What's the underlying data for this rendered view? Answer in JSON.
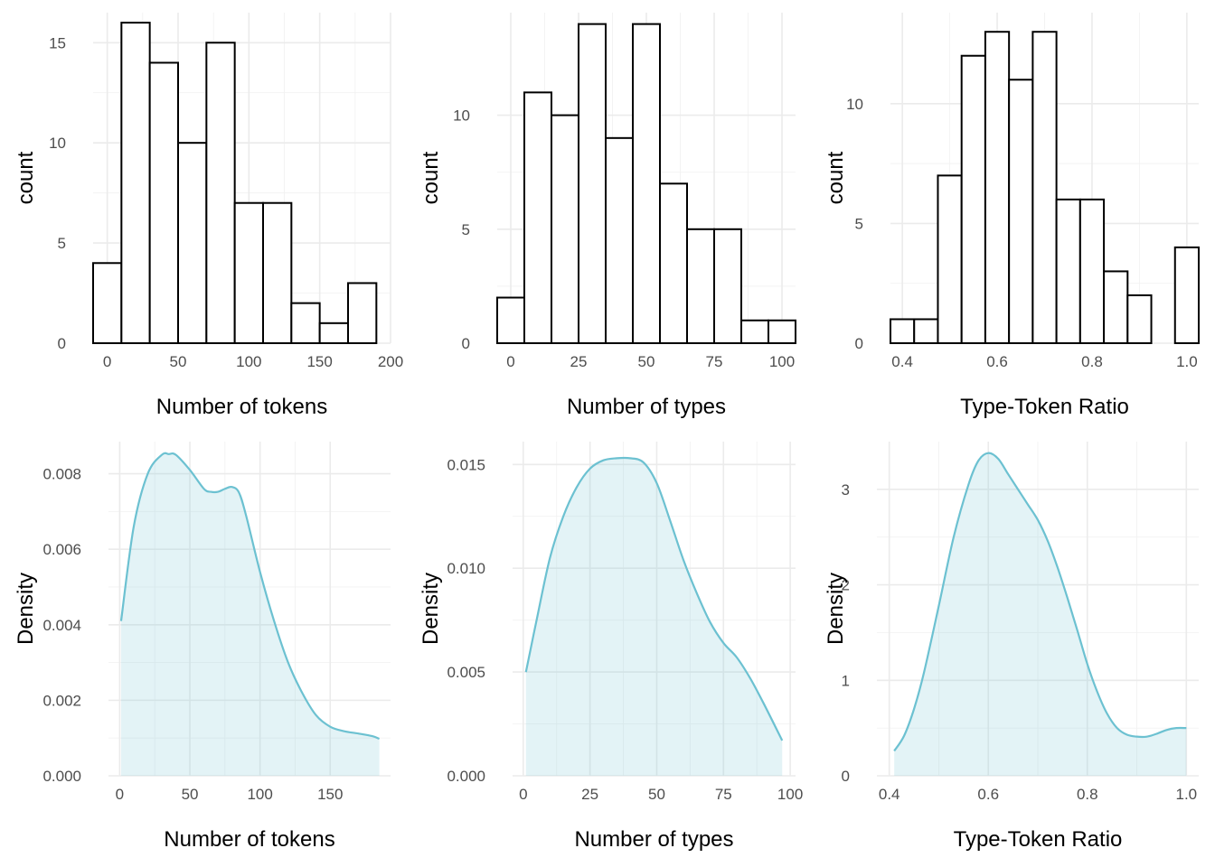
{
  "chart_data": [
    {
      "type": "bar",
      "subtype": "histogram",
      "xlabel": "Number of tokens",
      "ylabel": "count",
      "xlim": [
        -10,
        200
      ],
      "ylim": [
        0,
        16.5
      ],
      "xticks": [
        0,
        50,
        100,
        150,
        200
      ],
      "yticks": [
        0,
        5,
        10,
        15
      ],
      "bins": [
        {
          "x0": -10,
          "x1": 10,
          "count": 4
        },
        {
          "x0": 10,
          "x1": 30,
          "count": 16
        },
        {
          "x0": 30,
          "x1": 50,
          "count": 14
        },
        {
          "x0": 50,
          "x1": 70,
          "count": 10
        },
        {
          "x0": 70,
          "x1": 90,
          "count": 15
        },
        {
          "x0": 90,
          "x1": 110,
          "count": 7
        },
        {
          "x0": 110,
          "x1": 130,
          "count": 7
        },
        {
          "x0": 130,
          "x1": 150,
          "count": 2
        },
        {
          "x0": 150,
          "x1": 170,
          "count": 1
        },
        {
          "x0": 170,
          "x1": 190,
          "count": 3
        }
      ],
      "grid": true
    },
    {
      "type": "bar",
      "subtype": "histogram",
      "xlabel": "Number of types",
      "ylabel": "count",
      "xlim": [
        -5,
        105
      ],
      "ylim": [
        0,
        14.5
      ],
      "xticks": [
        0,
        25,
        50,
        75,
        100
      ],
      "yticks": [
        0,
        5,
        10
      ],
      "bins": [
        {
          "x0": -5,
          "x1": 5,
          "count": 2
        },
        {
          "x0": 5,
          "x1": 15,
          "count": 11
        },
        {
          "x0": 15,
          "x1": 25,
          "count": 10
        },
        {
          "x0": 25,
          "x1": 35,
          "count": 14
        },
        {
          "x0": 35,
          "x1": 45,
          "count": 9
        },
        {
          "x0": 45,
          "x1": 55,
          "count": 14
        },
        {
          "x0": 55,
          "x1": 65,
          "count": 7
        },
        {
          "x0": 65,
          "x1": 75,
          "count": 5
        },
        {
          "x0": 75,
          "x1": 85,
          "count": 5
        },
        {
          "x0": 85,
          "x1": 95,
          "count": 1
        },
        {
          "x0": 95,
          "x1": 105,
          "count": 1
        }
      ],
      "grid": true
    },
    {
      "type": "bar",
      "subtype": "histogram",
      "xlabel": "Type-Token Ratio",
      "ylabel": "count",
      "xlim": [
        0.375,
        1.025
      ],
      "ylim": [
        0,
        13.8
      ],
      "xticks": [
        0.4,
        0.6,
        0.8,
        1.0
      ],
      "xtick_labels": [
        "0.4",
        "0.6",
        "0.8",
        "1.0"
      ],
      "yticks": [
        0,
        5,
        10
      ],
      "bins": [
        {
          "x0": 0.375,
          "x1": 0.425,
          "count": 1
        },
        {
          "x0": 0.425,
          "x1": 0.475,
          "count": 1
        },
        {
          "x0": 0.475,
          "x1": 0.525,
          "count": 7
        },
        {
          "x0": 0.525,
          "x1": 0.575,
          "count": 12
        },
        {
          "x0": 0.575,
          "x1": 0.625,
          "count": 13
        },
        {
          "x0": 0.625,
          "x1": 0.675,
          "count": 11
        },
        {
          "x0": 0.675,
          "x1": 0.725,
          "count": 13
        },
        {
          "x0": 0.725,
          "x1": 0.775,
          "count": 6
        },
        {
          "x0": 0.775,
          "x1": 0.825,
          "count": 6
        },
        {
          "x0": 0.825,
          "x1": 0.875,
          "count": 3
        },
        {
          "x0": 0.875,
          "x1": 0.925,
          "count": 2
        },
        {
          "x0": 0.925,
          "x1": 0.975,
          "count": 0
        },
        {
          "x0": 0.975,
          "x1": 1.025,
          "count": 4
        }
      ],
      "grid": true
    },
    {
      "type": "area",
      "subtype": "density",
      "xlabel": "Number of tokens",
      "ylabel": "Density",
      "xlim": [
        -8,
        193
      ],
      "ylim": [
        0,
        0.00885
      ],
      "xticks": [
        0,
        50,
        100,
        150
      ],
      "yticks": [
        0,
        0.002,
        0.004,
        0.006,
        0.008
      ],
      "ytick_labels": [
        "0.000",
        "0.002",
        "0.004",
        "0.006",
        "0.008"
      ],
      "x": [
        1,
        10,
        20,
        30,
        35,
        40,
        50,
        60,
        65,
        70,
        75,
        80,
        85,
        90,
        100,
        110,
        120,
        130,
        140,
        150,
        160,
        170,
        180,
        185
      ],
      "y": [
        0.0041,
        0.0066,
        0.008,
        0.0085,
        0.00852,
        0.0085,
        0.0081,
        0.0076,
        0.00752,
        0.00752,
        0.0076,
        0.00765,
        0.0075,
        0.0069,
        0.0054,
        0.0041,
        0.003,
        0.0022,
        0.0016,
        0.0013,
        0.00118,
        0.00112,
        0.00105,
        0.00098
      ],
      "fill_color": "#dff0f4",
      "line_color": "#6cc1d1",
      "grid": true
    },
    {
      "type": "area",
      "subtype": "density",
      "xlabel": "Number of types",
      "ylabel": "Density",
      "xlim": [
        -4,
        102
      ],
      "ylim": [
        0,
        0.0161
      ],
      "xticks": [
        0,
        25,
        50,
        75,
        100
      ],
      "yticks": [
        0,
        0.005,
        0.01,
        0.015
      ],
      "ytick_labels": [
        "0.000",
        "0.005",
        "0.010",
        "0.015"
      ],
      "x": [
        1,
        5,
        10,
        15,
        20,
        25,
        30,
        35,
        40,
        45,
        50,
        55,
        60,
        65,
        70,
        75,
        80,
        85,
        90,
        97
      ],
      "y": [
        0.005,
        0.0075,
        0.0105,
        0.0125,
        0.0139,
        0.0148,
        0.0152,
        0.0153,
        0.0153,
        0.0151,
        0.0141,
        0.0123,
        0.0104,
        0.0088,
        0.0074,
        0.0064,
        0.0057,
        0.0047,
        0.0035,
        0.0017
      ],
      "fill_color": "#dff0f4",
      "line_color": "#6cc1d1",
      "grid": true
    },
    {
      "type": "area",
      "subtype": "density",
      "xlabel": "Type-Token Ratio",
      "ylabel": "Density",
      "xlim": [
        0.375,
        1.025
      ],
      "ylim": [
        0,
        3.5
      ],
      "xticks": [
        0.4,
        0.6,
        0.8,
        1.0
      ],
      "xtick_labels": [
        "0.4",
        "0.6",
        "0.8",
        "1.0"
      ],
      "yticks": [
        0,
        1,
        2,
        3
      ],
      "x": [
        0.41,
        0.43,
        0.45,
        0.47,
        0.5,
        0.53,
        0.56,
        0.58,
        0.6,
        0.62,
        0.64,
        0.66,
        0.68,
        0.7,
        0.72,
        0.74,
        0.76,
        0.78,
        0.8,
        0.82,
        0.84,
        0.86,
        0.88,
        0.9,
        0.92,
        0.94,
        0.96,
        0.98,
        1.0
      ],
      "y": [
        0.26,
        0.42,
        0.7,
        1.08,
        1.78,
        2.5,
        3.05,
        3.3,
        3.38,
        3.32,
        3.16,
        3.0,
        2.84,
        2.68,
        2.46,
        2.18,
        1.86,
        1.52,
        1.17,
        0.88,
        0.65,
        0.5,
        0.43,
        0.41,
        0.41,
        0.44,
        0.48,
        0.5,
        0.5
      ],
      "fill_color": "#dff0f4",
      "line_color": "#6cc1d1",
      "grid": true
    }
  ]
}
